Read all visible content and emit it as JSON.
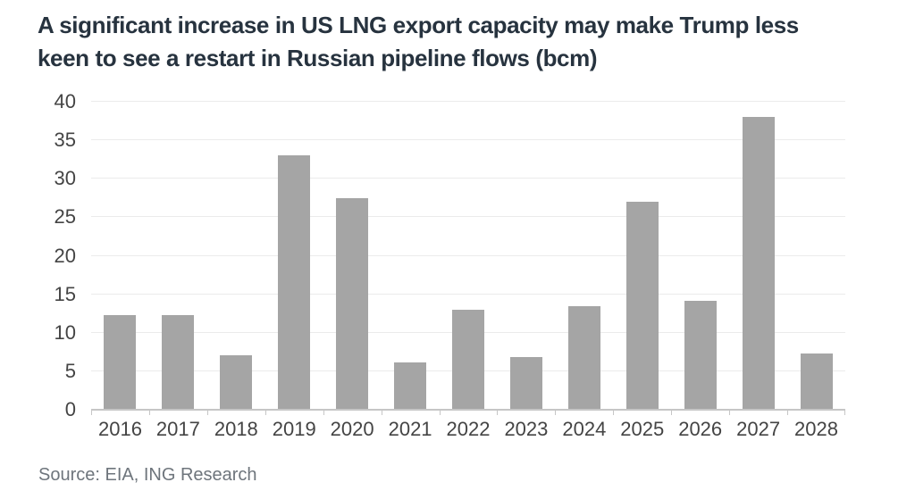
{
  "chart_data": {
    "type": "bar",
    "title": "A significant increase in US LNG export capacity may make Trump less keen to see a restart in Russian pipeline flows (bcm)",
    "title_lines": [
      "A significant increase in US LNG export capacity may make Trump less",
      "keen to see a restart in Russian pipeline flows (bcm)"
    ],
    "categories": [
      "2016",
      "2017",
      "2018",
      "2019",
      "2020",
      "2021",
      "2022",
      "2023",
      "2024",
      "2025",
      "2026",
      "2027",
      "2028"
    ],
    "values": [
      12.3,
      12.3,
      7.1,
      33,
      27.5,
      6.2,
      13,
      6.8,
      13.5,
      27,
      14.2,
      38,
      7.3
    ],
    "xlabel": "",
    "ylabel": "",
    "ylim": [
      0,
      40
    ],
    "yticks": [
      0,
      5,
      10,
      15,
      20,
      25,
      30,
      35,
      40
    ],
    "grid": "horizontal-only",
    "legend": "none",
    "unit": "bcm",
    "colors": {
      "bar": "#a5a5a5",
      "gridline": "#ebebeb",
      "axis": "#c6c6c6",
      "title": "#27333f",
      "tick_label": "#444444",
      "source": "#6e757c"
    }
  },
  "source": {
    "text": "Source: EIA, ING Research"
  }
}
